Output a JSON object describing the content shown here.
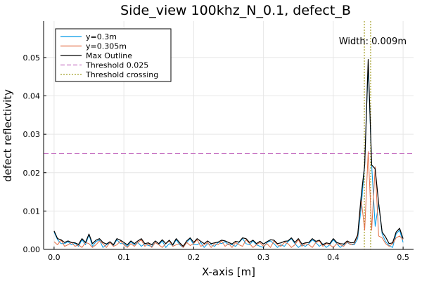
{
  "chart_data": {
    "type": "line",
    "title": "Side_view 100khz_N_0.1, defect_B",
    "xlabel": "X-axis [m]",
    "ylabel": "defect reflectivity",
    "xlim": [
      -0.015,
      0.515
    ],
    "ylim": [
      0,
      0.0595
    ],
    "xticks": [
      0.0,
      0.1,
      0.2,
      0.3,
      0.4,
      0.5
    ],
    "xtick_labels": [
      "0.0",
      "0.1",
      "0.2",
      "0.3",
      "0.4",
      "0.5"
    ],
    "yticks": [
      0.0,
      0.01,
      0.02,
      0.03,
      0.04,
      0.05
    ],
    "ytick_labels": [
      "0.00",
      "0.01",
      "0.02",
      "0.03",
      "0.04",
      "0.05"
    ],
    "grid": true,
    "legend_position": "top-left",
    "legend_entries": [
      "y=0.3m",
      "y=0.305m",
      "Max Outline",
      "Threshold 0.025",
      "Threshold crossing"
    ],
    "annotation": "Width: 0.009m",
    "x": [
      0.0,
      0.005,
      0.01,
      0.015,
      0.02,
      0.025,
      0.03,
      0.035,
      0.04,
      0.045,
      0.05,
      0.055,
      0.06,
      0.065,
      0.07,
      0.075,
      0.08,
      0.085,
      0.09,
      0.095,
      0.1,
      0.105,
      0.11,
      0.115,
      0.12,
      0.125,
      0.13,
      0.135,
      0.14,
      0.145,
      0.15,
      0.155,
      0.16,
      0.165,
      0.17,
      0.175,
      0.18,
      0.185,
      0.19,
      0.195,
      0.2,
      0.205,
      0.21,
      0.215,
      0.22,
      0.225,
      0.23,
      0.235,
      0.24,
      0.245,
      0.25,
      0.255,
      0.26,
      0.265,
      0.27,
      0.275,
      0.28,
      0.285,
      0.29,
      0.295,
      0.3,
      0.305,
      0.31,
      0.315,
      0.32,
      0.325,
      0.33,
      0.335,
      0.34,
      0.345,
      0.35,
      0.355,
      0.36,
      0.365,
      0.37,
      0.375,
      0.38,
      0.385,
      0.39,
      0.395,
      0.4,
      0.405,
      0.41,
      0.415,
      0.42,
      0.425,
      0.43,
      0.435,
      0.44,
      0.445,
      0.45,
      0.455,
      0.46,
      0.465,
      0.47,
      0.475,
      0.48,
      0.485,
      0.49,
      0.495,
      0.5
    ],
    "series": [
      {
        "name": "y=0.3m",
        "color": "#0099e6",
        "values": [
          0.0045,
          0.0025,
          0.0015,
          0.0015,
          0.002,
          0.0012,
          0.0016,
          0.0008,
          0.0025,
          0.0012,
          0.0038,
          0.0008,
          0.002,
          0.0025,
          0.0005,
          0.0012,
          0.0018,
          0.001,
          0.0025,
          0.0015,
          0.0015,
          0.0008,
          0.002,
          0.0012,
          0.0018,
          0.0008,
          0.0015,
          0.001,
          0.0008,
          0.0018,
          0.0012,
          0.0022,
          0.0005,
          0.0015,
          0.001,
          0.0025,
          0.0012,
          0.0005,
          0.0018,
          0.0028,
          0.0012,
          0.0012,
          0.0018,
          0.0005,
          0.0015,
          0.0012,
          0.0008,
          0.0018,
          0.0015,
          0.002,
          0.0012,
          0.0012,
          0.0008,
          0.0018,
          0.0028,
          0.0015,
          0.0012,
          0.0022,
          0.0012,
          0.0008,
          0.0005,
          0.0018,
          0.0022,
          0.0015,
          0.0005,
          0.0012,
          0.0008,
          0.002,
          0.0028,
          0.0015,
          0.0005,
          0.0012,
          0.0008,
          0.0015,
          0.0025,
          0.0018,
          0.0008,
          0.0015,
          0.0005,
          0.0012,
          0.0025,
          0.0015,
          0.0005,
          0.0012,
          0.0018,
          0.0012,
          0.0012,
          0.0028,
          0.011,
          0.022,
          0.048,
          0.022,
          0.006,
          0.012,
          0.004,
          0.002,
          0.001,
          0.0005,
          0.004,
          0.005,
          0.0018
        ]
      },
      {
        "name": "y=0.305m",
        "color": "#e26f46",
        "values": [
          0.002,
          0.0012,
          0.0025,
          0.0008,
          0.0012,
          0.0018,
          0.0008,
          0.0012,
          0.0005,
          0.0018,
          0.0015,
          0.0005,
          0.0012,
          0.0022,
          0.0015,
          0.0005,
          0.0018,
          0.0008,
          0.0012,
          0.0022,
          0.0012,
          0.0005,
          0.0015,
          0.0008,
          0.0018,
          0.0025,
          0.0008,
          0.0015,
          0.0005,
          0.0018,
          0.0012,
          0.0005,
          0.0015,
          0.0022,
          0.0008,
          0.0012,
          0.0015,
          0.0005,
          0.0018,
          0.001,
          0.0015,
          0.0025,
          0.0008,
          0.0012,
          0.0018,
          0.0005,
          0.0015,
          0.0012,
          0.0022,
          0.0008,
          0.0015,
          0.0005,
          0.0018,
          0.0012,
          0.0008,
          0.0025,
          0.0015,
          0.0005,
          0.0012,
          0.0018,
          0.0008,
          0.0015,
          0.0005,
          0.0022,
          0.0012,
          0.0008,
          0.0018,
          0.0015,
          0.0005,
          0.0012,
          0.0025,
          0.0008,
          0.0015,
          0.0012,
          0.0005,
          0.0018,
          0.0022,
          0.0008,
          0.0015,
          0.0012,
          0.0005,
          0.0015,
          0.0012,
          0.0008,
          0.002,
          0.0012,
          0.0015,
          0.0035,
          0.013,
          0.005,
          0.0255,
          0.005,
          0.0215,
          0.0035,
          0.003,
          0.0015,
          0.0008,
          0.0015,
          0.003,
          0.0035,
          0.0025
        ]
      },
      {
        "name": "Max Outline",
        "color": "#000000",
        "values": [
          0.0048,
          0.0028,
          0.0025,
          0.0018,
          0.0022,
          0.0018,
          0.0017,
          0.0013,
          0.0028,
          0.0018,
          0.004,
          0.0015,
          0.0024,
          0.0028,
          0.0018,
          0.0014,
          0.002,
          0.0012,
          0.0028,
          0.0024,
          0.0018,
          0.0012,
          0.0022,
          0.0015,
          0.0022,
          0.0028,
          0.0015,
          0.0017,
          0.0012,
          0.0022,
          0.0015,
          0.0025,
          0.0015,
          0.0024,
          0.0012,
          0.0028,
          0.0017,
          0.0008,
          0.0022,
          0.003,
          0.0018,
          0.0028,
          0.0021,
          0.0015,
          0.0022,
          0.0015,
          0.0017,
          0.0019,
          0.0024,
          0.0022,
          0.0018,
          0.0014,
          0.0021,
          0.0019,
          0.003,
          0.0028,
          0.0018,
          0.0024,
          0.0015,
          0.0021,
          0.0014,
          0.002,
          0.0025,
          0.0024,
          0.0015,
          0.0017,
          0.0021,
          0.0022,
          0.003,
          0.0018,
          0.0028,
          0.0014,
          0.0017,
          0.0018,
          0.0028,
          0.0021,
          0.0024,
          0.0012,
          0.0017,
          0.0015,
          0.0028,
          0.0018,
          0.0015,
          0.0014,
          0.0022,
          0.0017,
          0.0018,
          0.0038,
          0.014,
          0.022,
          0.0495,
          0.022,
          0.021,
          0.012,
          0.0045,
          0.0032,
          0.0015,
          0.0017,
          0.0045,
          0.0055,
          0.0028
        ]
      }
    ],
    "threshold": {
      "name": "Threshold 0.025",
      "value": 0.025,
      "color": "#c774c3"
    },
    "crossings": {
      "name": "Threshold crossing",
      "values": [
        0.4445,
        0.4535
      ],
      "color": "#a5a02a"
    }
  }
}
